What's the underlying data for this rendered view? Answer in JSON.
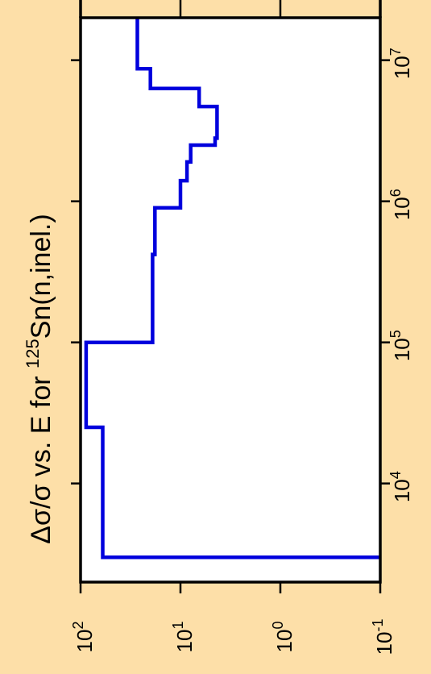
{
  "colors": {
    "background": "#FDDFA8",
    "plot_background": "#FFFFFF",
    "series": "#0000DD",
    "axis": "#000000"
  },
  "chart_data": {
    "type": "line",
    "orientation": "rotated-90-ccw",
    "title": "Δσ/σ vs. E for ¹²⁵Sn(n,inel.)",
    "title_parts": {
      "before": "Δσ/σ vs. E for ",
      "superscript": "125",
      "after": "Sn(n,inel.)"
    },
    "x_axis": {
      "quantity": "E",
      "scale": "log",
      "range": [
        2000,
        20000000
      ],
      "ticks": [
        {
          "value": 10000,
          "base": "10",
          "exp": "4"
        },
        {
          "value": 100000,
          "base": "10",
          "exp": "5"
        },
        {
          "value": 1000000,
          "base": "10",
          "exp": "6"
        },
        {
          "value": 10000000,
          "base": "10",
          "exp": "7"
        }
      ]
    },
    "y_axis": {
      "quantity": "Δσ/σ",
      "scale": "log",
      "range": [
        0.1,
        100
      ],
      "ticks": [
        {
          "value": 100,
          "base": "10",
          "exp": "2"
        },
        {
          "value": 10,
          "base": "10",
          "exp": "1"
        },
        {
          "value": 1,
          "base": "10",
          "exp": "0"
        },
        {
          "value": 0.1,
          "base": "10",
          "exp": "-1"
        }
      ]
    },
    "grid": false,
    "legend": "none",
    "series": [
      {
        "style": "step",
        "points": [
          {
            "x": 3000,
            "y": 0.1
          },
          {
            "x": 3000,
            "y": 60
          },
          {
            "x": 25000,
            "y": 60
          },
          {
            "x": 25000,
            "y": 88
          },
          {
            "x": 100000,
            "y": 88
          },
          {
            "x": 100000,
            "y": 19
          },
          {
            "x": 420000,
            "y": 19
          },
          {
            "x": 420000,
            "y": 18
          },
          {
            "x": 900000,
            "y": 18
          },
          {
            "x": 900000,
            "y": 10
          },
          {
            "x": 1400000,
            "y": 10
          },
          {
            "x": 1400000,
            "y": 8.6
          },
          {
            "x": 1900000,
            "y": 8.6
          },
          {
            "x": 1900000,
            "y": 7.9
          },
          {
            "x": 2500000,
            "y": 7.9
          },
          {
            "x": 2500000,
            "y": 4.5
          },
          {
            "x": 2800000,
            "y": 4.5
          },
          {
            "x": 2800000,
            "y": 4.3
          },
          {
            "x": 4700000,
            "y": 4.3
          },
          {
            "x": 4700000,
            "y": 6.5
          },
          {
            "x": 6300000,
            "y": 6.5
          },
          {
            "x": 6300000,
            "y": 20
          },
          {
            "x": 8700000,
            "y": 20
          },
          {
            "x": 8700000,
            "y": 27
          },
          {
            "x": 20000000,
            "y": 27
          }
        ]
      }
    ]
  }
}
